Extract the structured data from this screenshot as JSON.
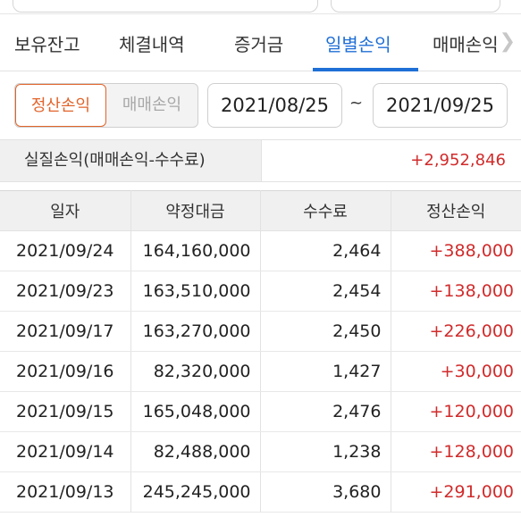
{
  "tabs": [
    {
      "label": "보유잔고"
    },
    {
      "label": "체결내역"
    },
    {
      "label": "증거금"
    },
    {
      "label": "일별손익"
    },
    {
      "label": "매매손익"
    }
  ],
  "active_tab": "일별손익",
  "filter": {
    "toggle_on": "정산손익",
    "toggle_off": "매매손익",
    "start_date": "2021/08/25",
    "separator": "~",
    "end_date": "2021/09/25"
  },
  "summary": {
    "label": "실질손익(매매손익-수수료)",
    "value": "+2,952,846"
  },
  "table": {
    "headers": [
      "일자",
      "약정대금",
      "수수료",
      "정산손익"
    ],
    "rows": [
      [
        "2021/09/24",
        "164,160,000",
        "2,464",
        "+388,000"
      ],
      [
        "2021/09/23",
        "163,510,000",
        "2,454",
        "+138,000"
      ],
      [
        "2021/09/17",
        "163,270,000",
        "2,450",
        "+226,000"
      ],
      [
        "2021/09/16",
        "82,320,000",
        "1,427",
        "+30,000"
      ],
      [
        "2021/09/15",
        "165,048,000",
        "2,476",
        "+120,000"
      ],
      [
        "2021/09/14",
        "82,488,000",
        "1,238",
        "+128,000"
      ],
      [
        "2021/09/13",
        "245,245,000",
        "3,680",
        "+291,000"
      ]
    ]
  },
  "colors": {
    "accent_blue": "#1f6fd6",
    "accent_orange": "#e1642b",
    "profit_red": "#d12b2b"
  },
  "icons": {
    "tab_scroll": "chevron-right-icon"
  }
}
